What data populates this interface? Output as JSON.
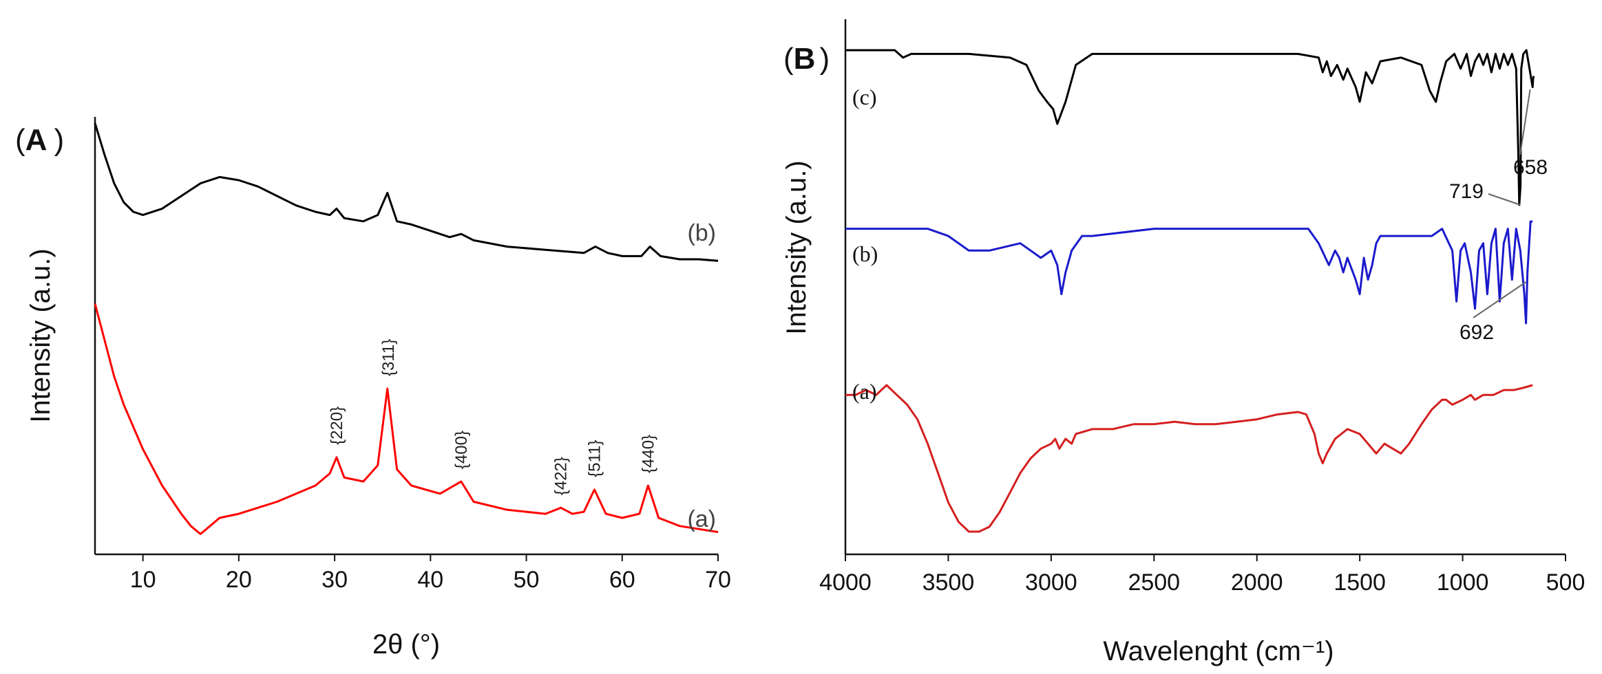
{
  "colors": {
    "series_a": "#ff0000",
    "series_b": "#000000",
    "ftir_a": "#d41f1f",
    "ftir_b": "#1a1acc",
    "ftir_c": "#000000",
    "axis": "#111111"
  },
  "chart_data": [
    {
      "panel": "A",
      "panel_label_open": "(",
      "panel_label_letter": "A",
      "panel_label_close": ")",
      "type": "line",
      "title": "",
      "xlabel": "2θ (°)",
      "ylabel": "Intensity (a.u.)",
      "xlim": [
        5,
        70
      ],
      "ylim": [
        0,
        100
      ],
      "xticks": [
        10,
        20,
        30,
        40,
        50,
        60,
        70
      ],
      "series": [
        {
          "id": "b",
          "name": "(b)",
          "color": "#000000",
          "x": [
            5,
            6,
            7,
            8,
            9,
            10,
            12,
            14,
            16,
            18,
            20,
            22,
            24,
            26,
            28,
            29.5,
            30.2,
            31,
            33,
            34.5,
            35.5,
            36.5,
            38,
            40,
            42,
            43.2,
            44.5,
            48,
            52,
            54,
            56,
            57.2,
            58.5,
            60,
            62,
            62.9,
            64,
            66,
            68,
            70
          ],
          "values": [
            98,
            88,
            79,
            73,
            70,
            69,
            71,
            75,
            79,
            81,
            80,
            78,
            75,
            72,
            70,
            69,
            71,
            68,
            67,
            69,
            76,
            67,
            66,
            64,
            62,
            63,
            61,
            59,
            58,
            57.5,
            57,
            59,
            57,
            56,
            56,
            59,
            56,
            55,
            55,
            54.5
          ]
        },
        {
          "id": "a",
          "name": "(a)",
          "color": "#ff0000",
          "x": [
            5,
            6,
            7,
            8,
            10,
            12,
            14,
            15,
            16,
            17,
            18,
            20,
            24,
            28,
            29.5,
            30.2,
            31,
            33,
            34.5,
            35.5,
            36.5,
            38,
            41,
            43.2,
            44.5,
            48,
            52,
            53.6,
            54.8,
            56,
            57.1,
            58.3,
            60,
            61.8,
            62.7,
            63.8,
            66,
            70
          ],
          "values": [
            66,
            57,
            48,
            41,
            30,
            21,
            14,
            11,
            9,
            11,
            13,
            14,
            17,
            21,
            24,
            28,
            23,
            22,
            26,
            45,
            25,
            21,
            19,
            22,
            17,
            15,
            14,
            15.5,
            14,
            14.5,
            20,
            14,
            13,
            14,
            21,
            13,
            11,
            9.5
          ]
        }
      ],
      "curve_labels": {
        "b": "(b)",
        "a": "(a)"
      },
      "peak_labels": [
        {
          "text": "{220}",
          "x": 30.2
        },
        {
          "text": "{311}",
          "x": 35.6
        },
        {
          "text": "{400}",
          "x": 43.2
        },
        {
          "text": "{422}",
          "x": 53.6
        },
        {
          "text": "{511}",
          "x": 57.1
        },
        {
          "text": "{440}",
          "x": 62.7
        }
      ]
    },
    {
      "panel": "B",
      "panel_label_open": "(",
      "panel_label_letter": "B",
      "panel_label_close": ")",
      "type": "line",
      "title": "",
      "xlabel": "Wavelenght (cm⁻¹)",
      "ylabel": "Intensity (a.u.)",
      "xlim": [
        4000,
        500
      ],
      "ylim": [
        0,
        100
      ],
      "xticks": [
        4000,
        3500,
        3000,
        2500,
        2000,
        1500,
        1000,
        500
      ],
      "xtick_labels": [
        "4000",
        "3500",
        "3000",
        "2500",
        "2000",
        "1500",
        "1000",
        "500"
      ],
      "series": [
        {
          "id": "c",
          "name": "(c)",
          "color": "#000000",
          "x": [
            4000,
            3900,
            3760,
            3720,
            3680,
            3600,
            3400,
            3200,
            3120,
            3060,
            3020,
            2990,
            2970,
            2930,
            2880,
            2800,
            2500,
            2000,
            1800,
            1700,
            1680,
            1660,
            1640,
            1610,
            1580,
            1560,
            1520,
            1500,
            1470,
            1440,
            1400,
            1300,
            1200,
            1160,
            1130,
            1110,
            1080,
            1040,
            1010,
            980,
            960,
            940,
            920,
            900,
            880,
            860,
            840,
            820,
            800,
            780,
            760,
            740,
            730,
            725,
            719,
            715,
            705,
            690,
            672,
            660,
            658,
            655
          ],
          "values": [
            97,
            97,
            97,
            95,
            96,
            96,
            96,
            95,
            93,
            86,
            83,
            81,
            77,
            83,
            93,
            96,
            96,
            96,
            96,
            95,
            91,
            94,
            90,
            93,
            89,
            92,
            87,
            83,
            91,
            88,
            94,
            95,
            93,
            86,
            83,
            88,
            94,
            96,
            92,
            96,
            90,
            94,
            96,
            93,
            96,
            91,
            96,
            92,
            96,
            93,
            96,
            92,
            70,
            55,
            60,
            92,
            96,
            97,
            91,
            87,
            89,
            90
          ]
        },
        {
          "id": "b",
          "name": "(b)",
          "color": "#1a1acc",
          "x": [
            4000,
            3800,
            3600,
            3500,
            3400,
            3300,
            3150,
            3100,
            3050,
            3000,
            2970,
            2950,
            2930,
            2900,
            2850,
            2800,
            2500,
            2200,
            2000,
            1800,
            1750,
            1700,
            1650,
            1620,
            1600,
            1580,
            1560,
            1520,
            1500,
            1480,
            1460,
            1440,
            1420,
            1400,
            1300,
            1200,
            1150,
            1100,
            1050,
            1030,
            1010,
            990,
            960,
            940,
            920,
            900,
            880,
            860,
            840,
            820,
            800,
            780,
            760,
            740,
            720,
            700,
            692,
            685,
            670,
            660
          ],
          "values": [
            62,
            62,
            62,
            61,
            59,
            59,
            60,
            59,
            58,
            59,
            57,
            53,
            56,
            59,
            61,
            61,
            62,
            62,
            62,
            62,
            62,
            60,
            57,
            59,
            58,
            56,
            58,
            55,
            53,
            58,
            55,
            57,
            60,
            61,
            61,
            61,
            61,
            62,
            59,
            52,
            59,
            60,
            56,
            51,
            59,
            60,
            53,
            60,
            62,
            52,
            60,
            62,
            55,
            62,
            59,
            53,
            49,
            56,
            63,
            63
          ]
        },
        {
          "id": "a",
          "name": "(a)",
          "color": "#d41f1f",
          "x": [
            4000,
            3950,
            3900,
            3850,
            3800,
            3750,
            3700,
            3650,
            3600,
            3550,
            3500,
            3450,
            3400,
            3350,
            3300,
            3250,
            3200,
            3150,
            3100,
            3050,
            3000,
            2980,
            2960,
            2930,
            2900,
            2880,
            2800,
            2700,
            2600,
            2500,
            2400,
            2300,
            2200,
            2100,
            2000,
            1900,
            1800,
            1760,
            1720,
            1700,
            1680,
            1660,
            1620,
            1560,
            1500,
            1460,
            1420,
            1400,
            1380,
            1340,
            1300,
            1260,
            1200,
            1150,
            1100,
            1080,
            1050,
            1000,
            960,
            940,
            900,
            850,
            800,
            750,
            700,
            660
          ],
          "values": [
            38,
            38,
            39,
            38,
            40,
            38,
            36,
            33,
            28,
            22,
            16,
            12,
            10,
            10,
            11,
            14,
            18,
            22,
            25,
            27,
            28,
            29,
            27,
            29,
            28,
            30,
            31,
            31,
            32,
            32,
            32.5,
            32,
            32,
            32.5,
            33,
            34,
            34.5,
            34,
            30,
            26,
            24,
            26,
            29,
            31,
            30,
            28,
            26,
            27,
            28,
            27,
            26,
            28,
            32,
            35,
            37,
            37,
            36,
            37,
            38,
            37,
            38,
            38,
            39,
            39,
            39.5,
            40
          ]
        }
      ],
      "curve_labels": {
        "c": "(c)",
        "b": "(b)",
        "a": "(a)"
      },
      "annotations": [
        {
          "text": "719",
          "x": 719
        },
        {
          "text": "658",
          "x": 658
        },
        {
          "text": "692",
          "x": 692
        }
      ]
    }
  ]
}
